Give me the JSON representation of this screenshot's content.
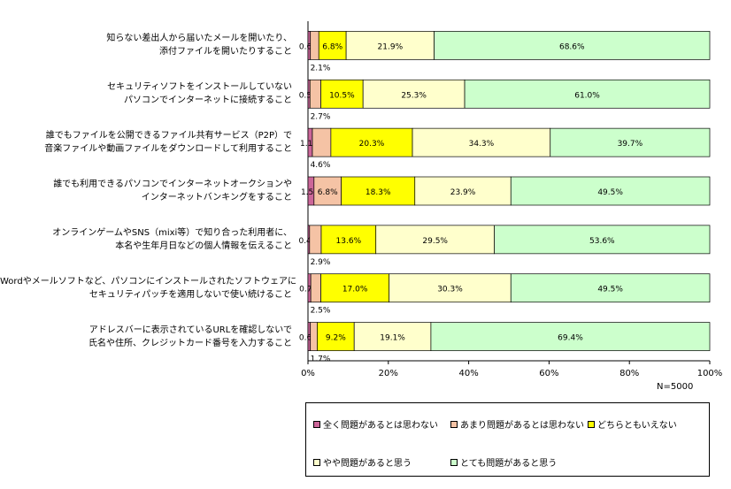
{
  "chart_data": {
    "type": "bar",
    "orientation": "horizontal",
    "stacked": "percent",
    "categories": [
      [
        "知らない差出人から届いたメールを開いたり、",
        "添付ファイルを開いたりすること"
      ],
      [
        "セキュリティソフトをインストールしていない",
        "パソコンでインターネットに接続すること"
      ],
      [
        "誰でもファイルを公開できるファイル共有サービス（P2P）で",
        "音楽ファイルや動画ファイルをダウンロードして利用すること"
      ],
      [
        "誰でも利用できるパソコンでインターネットオークションや",
        "インターネットバンキングをすること"
      ],
      [
        "オンラインゲームやSNS（mixi等）で知り合った利用者に、",
        "本名や生年月日などの個人情報を伝えること"
      ],
      [
        "Wordやメールソフトなど、パソコンにインストールされたソフトウェアに",
        "セキュリティパッチを適用しないで使い続けること"
      ],
      [
        "アドレスバーに表示されているURLを確認しないで",
        "氏名や住所、クレジットカード番号を入力すること"
      ]
    ],
    "series": [
      {
        "name": "全く問題があるとは思わない",
        "color": "#cc6699",
        "values": [
          0.6,
          0.5,
          1.1,
          1.5,
          0.4,
          0.7,
          0.6
        ]
      },
      {
        "name": "あまり問題があるとは思わない",
        "color": "#f5c3a5",
        "values": [
          2.1,
          2.7,
          4.6,
          6.8,
          2.9,
          2.5,
          1.7
        ]
      },
      {
        "name": "どちらともいえない",
        "color": "#ffff00",
        "values": [
          6.8,
          10.5,
          20.3,
          18.3,
          13.6,
          17.0,
          9.2
        ]
      },
      {
        "name": "やや問題があると思う",
        "color": "#ffffcc",
        "values": [
          21.9,
          25.3,
          34.3,
          23.9,
          29.5,
          30.3,
          19.1
        ]
      },
      {
        "name": "とても問題があると思う",
        "color": "#ccffcc",
        "values": [
          68.6,
          61.0,
          39.7,
          49.5,
          53.6,
          49.5,
          69.4
        ]
      }
    ],
    "data_labels": [
      [
        "0.6%",
        "",
        "6.8%",
        "21.9%",
        "68.6%"
      ],
      [
        "0.5%",
        "",
        "10.5%",
        "25.3%",
        "61.0%"
      ],
      [
        "1.1%",
        "",
        "20.3%",
        "34.3%",
        "39.7%"
      ],
      [
        "1.5%",
        "6.8%",
        "18.3%",
        "23.9%",
        "49.5%"
      ],
      [
        "0.4%",
        "",
        "13.6%",
        "29.5%",
        "53.6%"
      ],
      [
        "0.7%",
        "",
        "17.0%",
        "30.3%",
        "49.5%"
      ],
      [
        "0.6%",
        "",
        "9.2%",
        "19.1%",
        "69.4%"
      ]
    ],
    "below_labels": [
      "2.1%",
      "2.7%",
      "4.6%",
      "",
      "2.9%",
      "2.5%",
      "1.7%"
    ],
    "xticks": [
      "0%",
      "20%",
      "40%",
      "60%",
      "80%",
      "100%"
    ],
    "xlim": [
      0,
      100
    ],
    "note": "N=5000",
    "legend_position": "bottom"
  }
}
